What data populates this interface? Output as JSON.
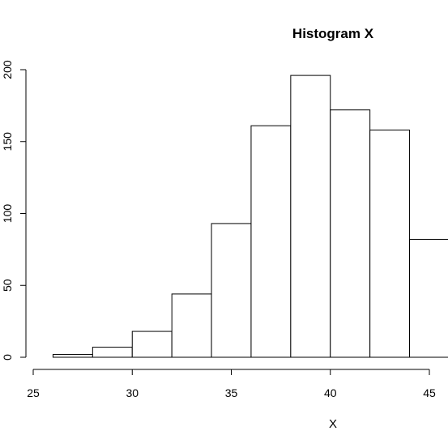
{
  "chart_data": {
    "type": "bar",
    "title": "Histogram X",
    "xlabel": "X",
    "ylabel": "",
    "bins": [
      {
        "start": 26,
        "end": 28,
        "count": 2
      },
      {
        "start": 28,
        "end": 30,
        "count": 7
      },
      {
        "start": 30,
        "end": 32,
        "count": 18
      },
      {
        "start": 32,
        "end": 34,
        "count": 44
      },
      {
        "start": 34,
        "end": 36,
        "count": 93
      },
      {
        "start": 36,
        "end": 38,
        "count": 161
      },
      {
        "start": 38,
        "end": 40,
        "count": 196
      },
      {
        "start": 40,
        "end": 42,
        "count": 172
      },
      {
        "start": 42,
        "end": 44,
        "count": 158
      },
      {
        "start": 44,
        "end": 46,
        "count": 82
      }
    ],
    "xlim": [
      25,
      46
    ],
    "ylim": [
      0,
      200
    ],
    "x_ticks": [
      25,
      30,
      35,
      40,
      45
    ],
    "y_ticks": [
      0,
      50,
      100,
      150,
      200
    ],
    "grid": false
  }
}
